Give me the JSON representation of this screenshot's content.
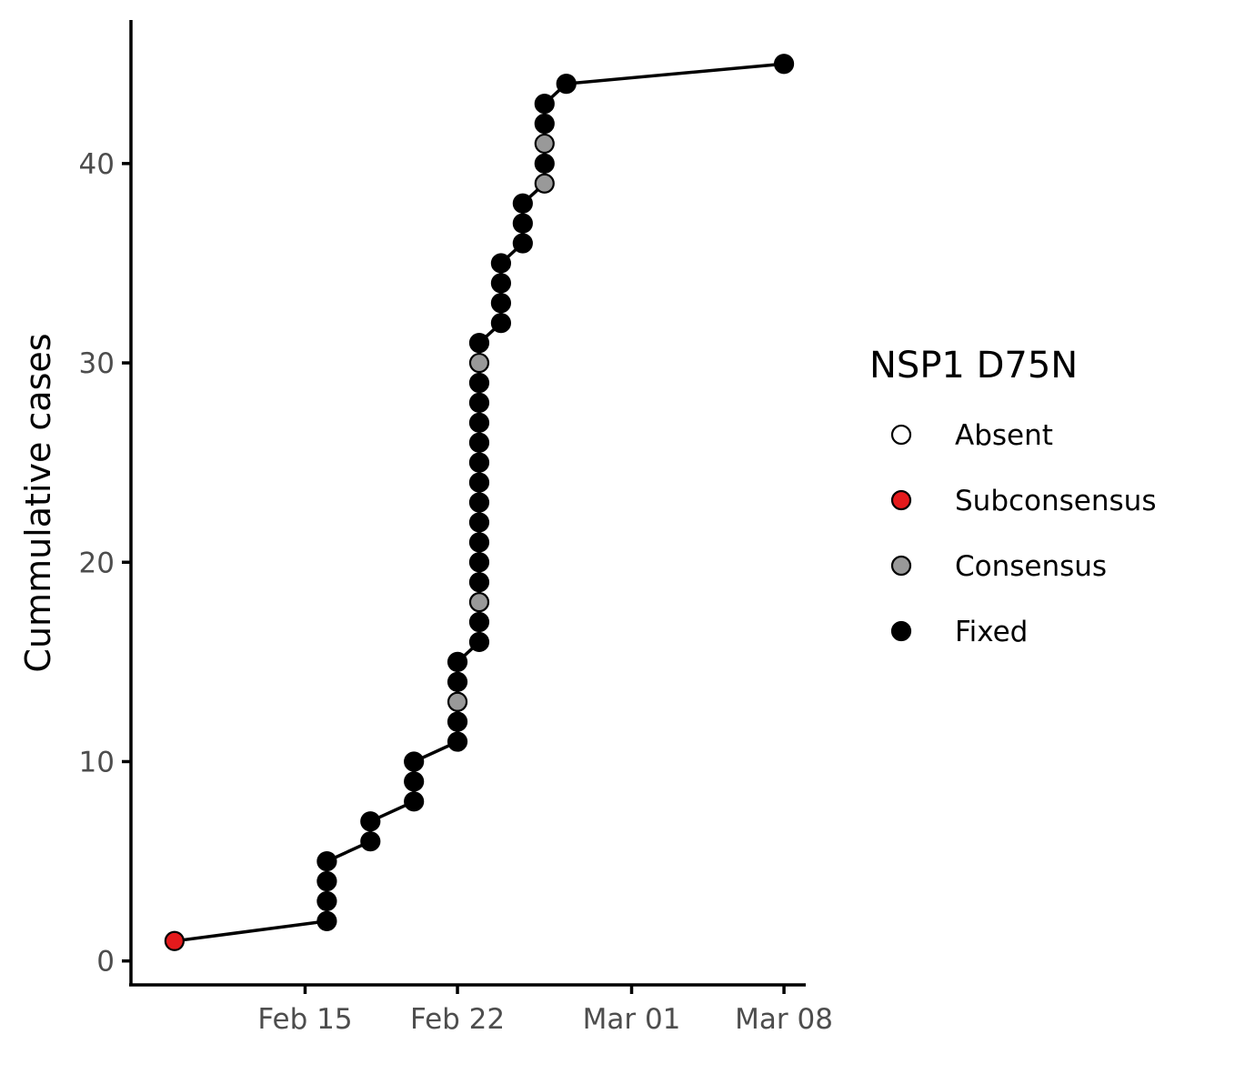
{
  "chart_data": {
    "type": "line",
    "xlabel": "",
    "ylabel": "Cummulative cases",
    "x_axis": {
      "type": "date",
      "ticks": [
        "Feb 15",
        "Feb 22",
        "Mar 01",
        "Mar 08"
      ],
      "tick_dates": [
        "2020-02-15",
        "2020-02-22",
        "2020-03-01",
        "2020-03-08"
      ],
      "range": [
        "2020-02-07",
        "2020-03-09"
      ]
    },
    "y_axis": {
      "ticks": [
        0,
        10,
        20,
        30,
        40
      ],
      "range": [
        -1.2,
        47.2
      ]
    },
    "grid": false,
    "legend": {
      "title": "NSP1 D75N",
      "position": "right",
      "entries": [
        {
          "key": "Absent",
          "label": "Absent",
          "fill": "#ffffff"
        },
        {
          "key": "Subconsensus",
          "label": "Subconsensus",
          "fill": "#e41a1c"
        },
        {
          "key": "Consensus",
          "label": "Consensus",
          "fill": "#999999"
        },
        {
          "key": "Fixed",
          "label": "Fixed",
          "fill": "#000000"
        }
      ]
    },
    "line_color": "#000000",
    "points": [
      {
        "date": "2020-02-09",
        "y": 1,
        "status": "Subconsensus"
      },
      {
        "date": "2020-02-16",
        "y": 2,
        "status": "Fixed"
      },
      {
        "date": "2020-02-16",
        "y": 3,
        "status": "Fixed"
      },
      {
        "date": "2020-02-16",
        "y": 4,
        "status": "Fixed"
      },
      {
        "date": "2020-02-16",
        "y": 5,
        "status": "Fixed"
      },
      {
        "date": "2020-02-18",
        "y": 6,
        "status": "Fixed"
      },
      {
        "date": "2020-02-18",
        "y": 7,
        "status": "Fixed"
      },
      {
        "date": "2020-02-20",
        "y": 8,
        "status": "Fixed"
      },
      {
        "date": "2020-02-20",
        "y": 9,
        "status": "Fixed"
      },
      {
        "date": "2020-02-20",
        "y": 10,
        "status": "Fixed"
      },
      {
        "date": "2020-02-22",
        "y": 11,
        "status": "Fixed"
      },
      {
        "date": "2020-02-22",
        "y": 12,
        "status": "Fixed"
      },
      {
        "date": "2020-02-22",
        "y": 13,
        "status": "Consensus"
      },
      {
        "date": "2020-02-22",
        "y": 14,
        "status": "Fixed"
      },
      {
        "date": "2020-02-22",
        "y": 15,
        "status": "Fixed"
      },
      {
        "date": "2020-02-23",
        "y": 16,
        "status": "Fixed"
      },
      {
        "date": "2020-02-23",
        "y": 17,
        "status": "Fixed"
      },
      {
        "date": "2020-02-23",
        "y": 18,
        "status": "Consensus"
      },
      {
        "date": "2020-02-23",
        "y": 19,
        "status": "Fixed"
      },
      {
        "date": "2020-02-23",
        "y": 20,
        "status": "Fixed"
      },
      {
        "date": "2020-02-23",
        "y": 21,
        "status": "Fixed"
      },
      {
        "date": "2020-02-23",
        "y": 22,
        "status": "Fixed"
      },
      {
        "date": "2020-02-23",
        "y": 23,
        "status": "Fixed"
      },
      {
        "date": "2020-02-23",
        "y": 24,
        "status": "Fixed"
      },
      {
        "date": "2020-02-23",
        "y": 25,
        "status": "Fixed"
      },
      {
        "date": "2020-02-23",
        "y": 26,
        "status": "Fixed"
      },
      {
        "date": "2020-02-23",
        "y": 27,
        "status": "Fixed"
      },
      {
        "date": "2020-02-23",
        "y": 28,
        "status": "Fixed"
      },
      {
        "date": "2020-02-23",
        "y": 29,
        "status": "Fixed"
      },
      {
        "date": "2020-02-23",
        "y": 30,
        "status": "Consensus"
      },
      {
        "date": "2020-02-23",
        "y": 31,
        "status": "Fixed"
      },
      {
        "date": "2020-02-24",
        "y": 32,
        "status": "Fixed"
      },
      {
        "date": "2020-02-24",
        "y": 33,
        "status": "Fixed"
      },
      {
        "date": "2020-02-24",
        "y": 34,
        "status": "Fixed"
      },
      {
        "date": "2020-02-24",
        "y": 35,
        "status": "Fixed"
      },
      {
        "date": "2020-02-25",
        "y": 36,
        "status": "Fixed"
      },
      {
        "date": "2020-02-25",
        "y": 37,
        "status": "Fixed"
      },
      {
        "date": "2020-02-25",
        "y": 38,
        "status": "Fixed"
      },
      {
        "date": "2020-02-26",
        "y": 39,
        "status": "Consensus"
      },
      {
        "date": "2020-02-26",
        "y": 40,
        "status": "Fixed"
      },
      {
        "date": "2020-02-26",
        "y": 41,
        "status": "Consensus"
      },
      {
        "date": "2020-02-26",
        "y": 42,
        "status": "Fixed"
      },
      {
        "date": "2020-02-26",
        "y": 43,
        "status": "Fixed"
      },
      {
        "date": "2020-02-27",
        "y": 44,
        "status": "Fixed"
      },
      {
        "date": "2020-03-08",
        "y": 45,
        "status": "Fixed"
      }
    ]
  }
}
